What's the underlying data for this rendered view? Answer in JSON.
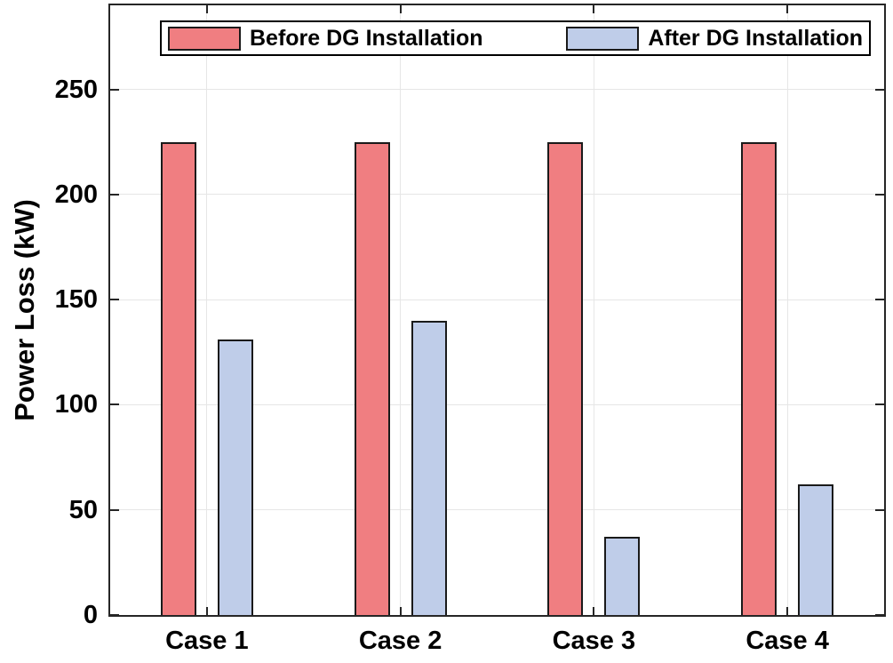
{
  "chart_data": {
    "type": "bar",
    "title": "",
    "categories": [
      "Case 1",
      "Case 2",
      "Case 3",
      "Case 4"
    ],
    "series": [
      {
        "name": "Before DG Installation",
        "color": "#F07E81",
        "edge_color": "#1A1A1A",
        "values": [
          225,
          225,
          225,
          225
        ]
      },
      {
        "name": "After DG Installation",
        "color": "#BFCDE9",
        "edge_color": "#1A1A1A",
        "values": [
          131,
          140,
          37,
          62
        ]
      }
    ],
    "xlabel": "",
    "ylabel": "Power Loss (kW)",
    "yticks": [
      0,
      50,
      100,
      150,
      200,
      250
    ],
    "ylim": [
      0,
      290
    ],
    "grid": "on",
    "grid_color": "#E6E6E6",
    "axis_color": "#262626",
    "legend_position": "north-inside",
    "background": "#FFFFFF"
  }
}
